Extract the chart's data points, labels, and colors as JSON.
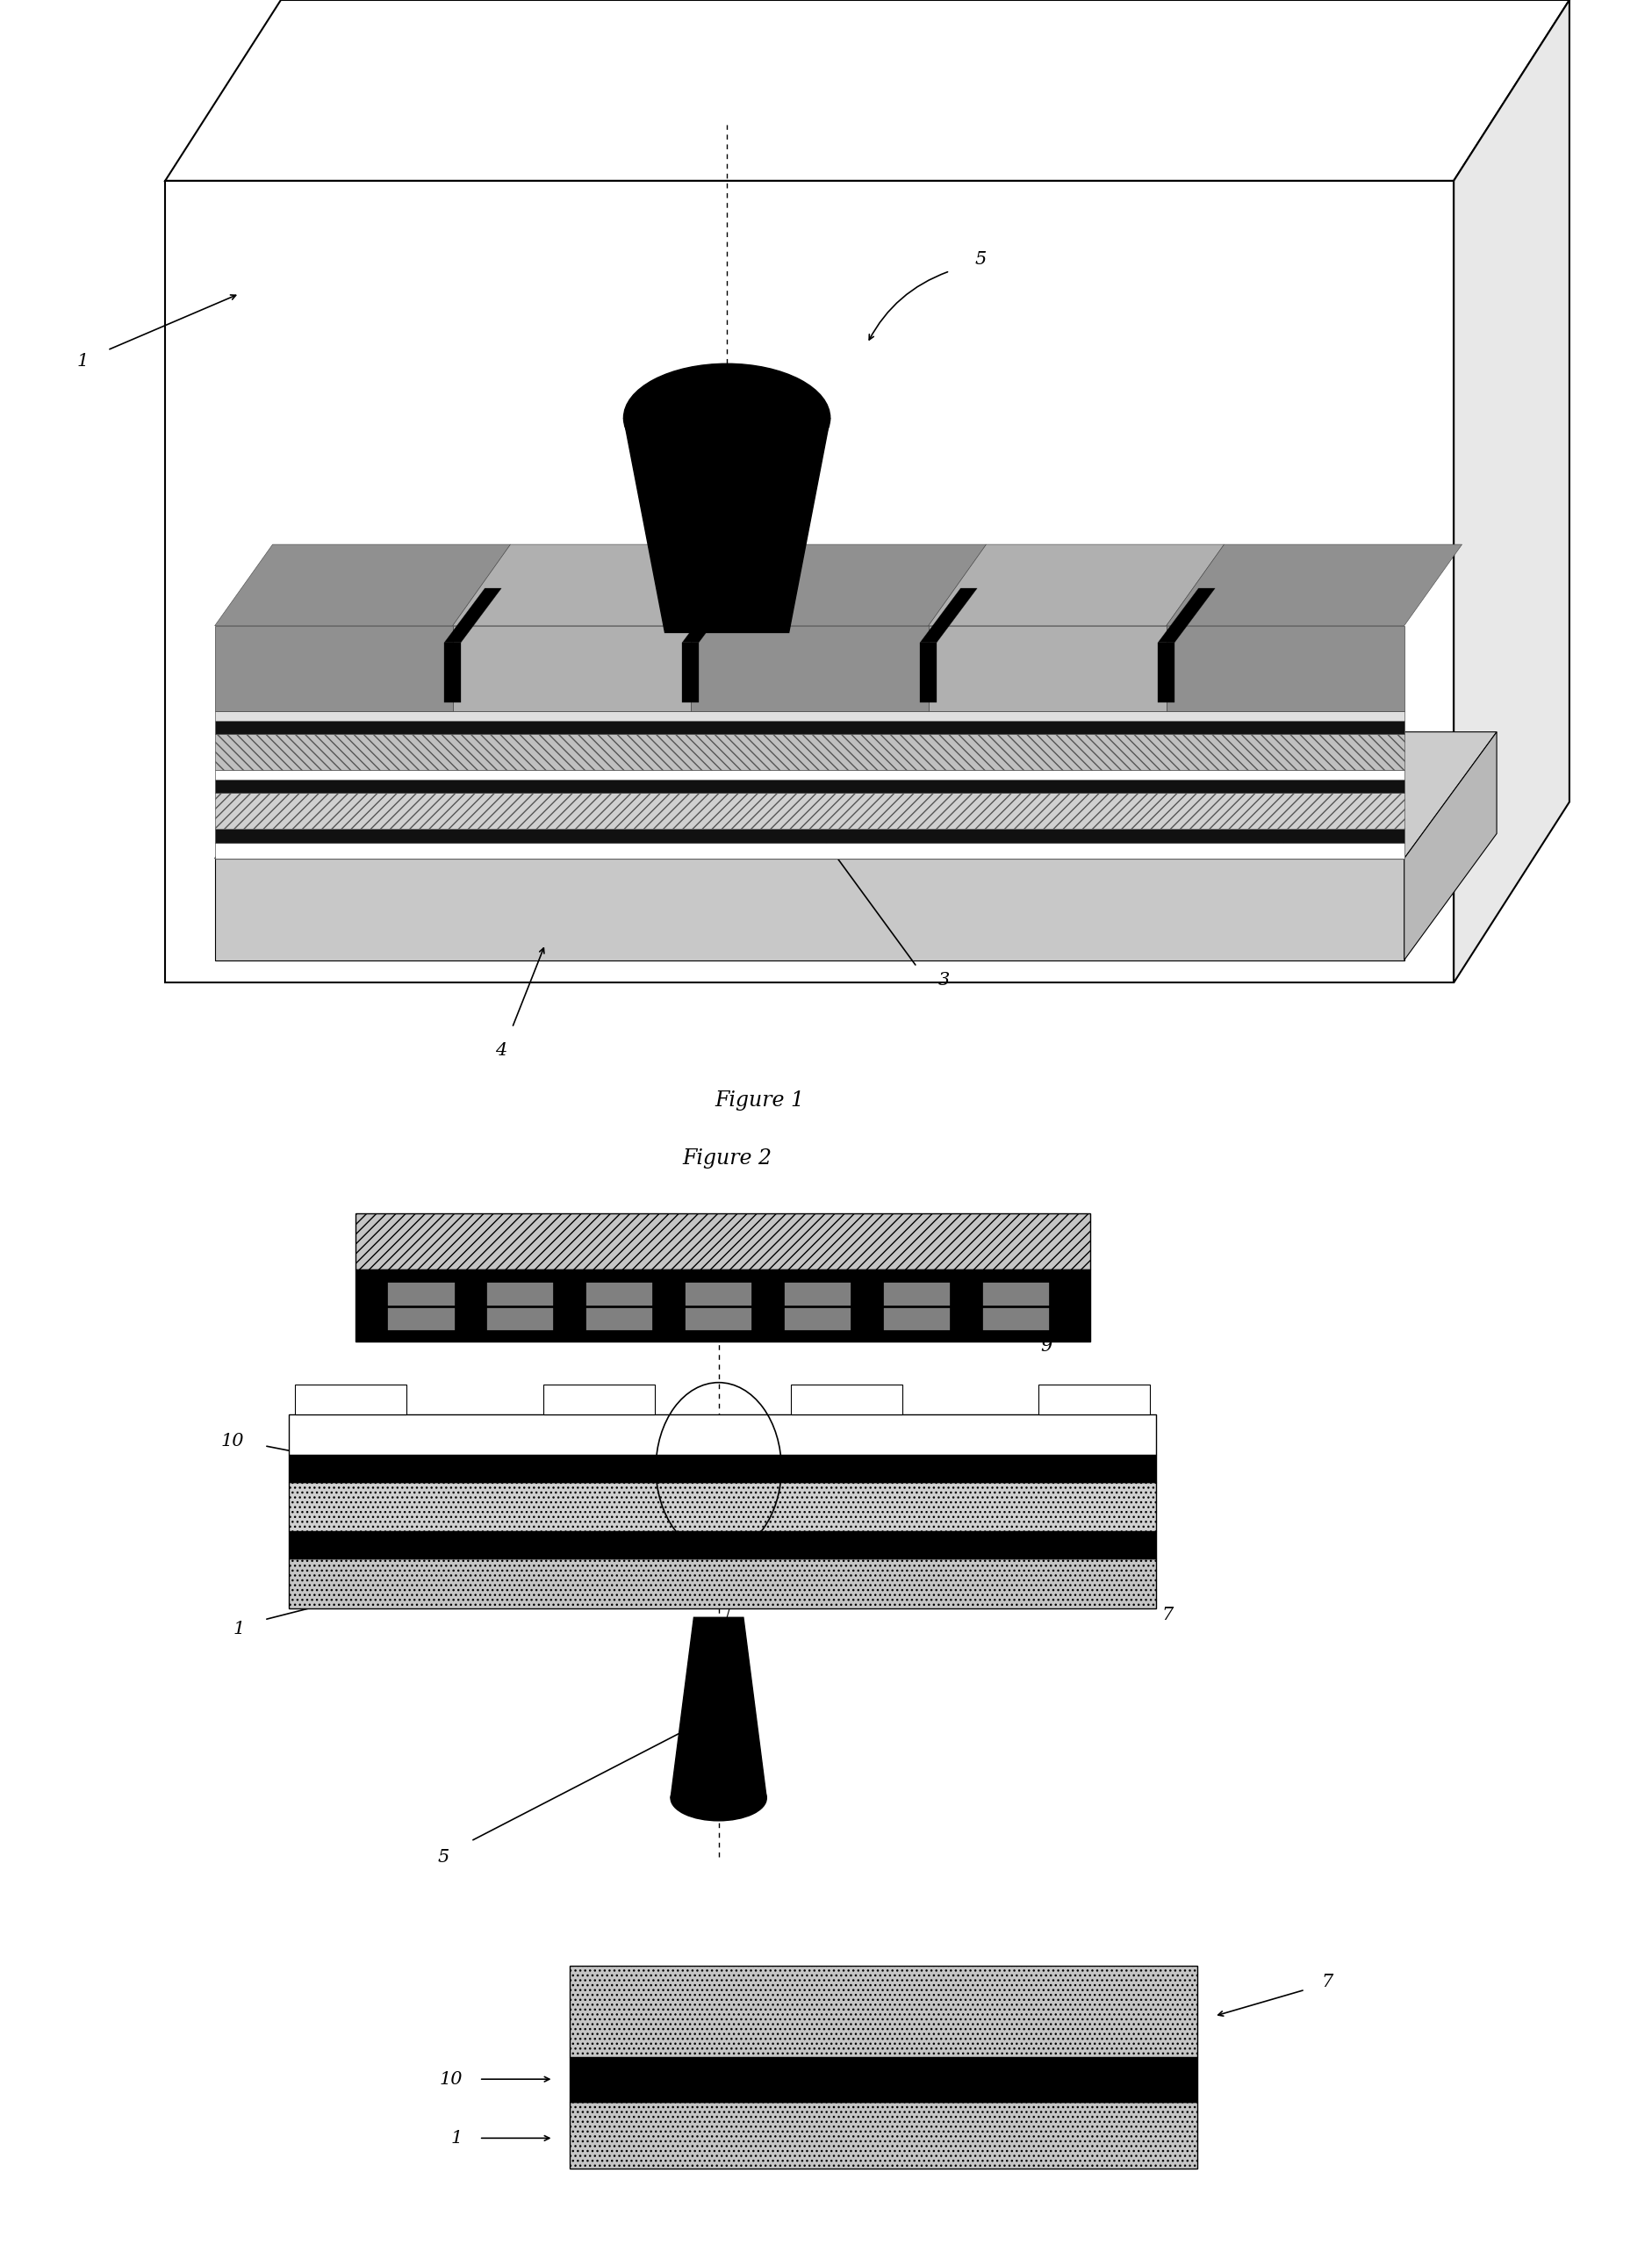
{
  "bg_color": "#ffffff",
  "fig1_title": "Figure 1",
  "fig2_title": "Figure 2"
}
